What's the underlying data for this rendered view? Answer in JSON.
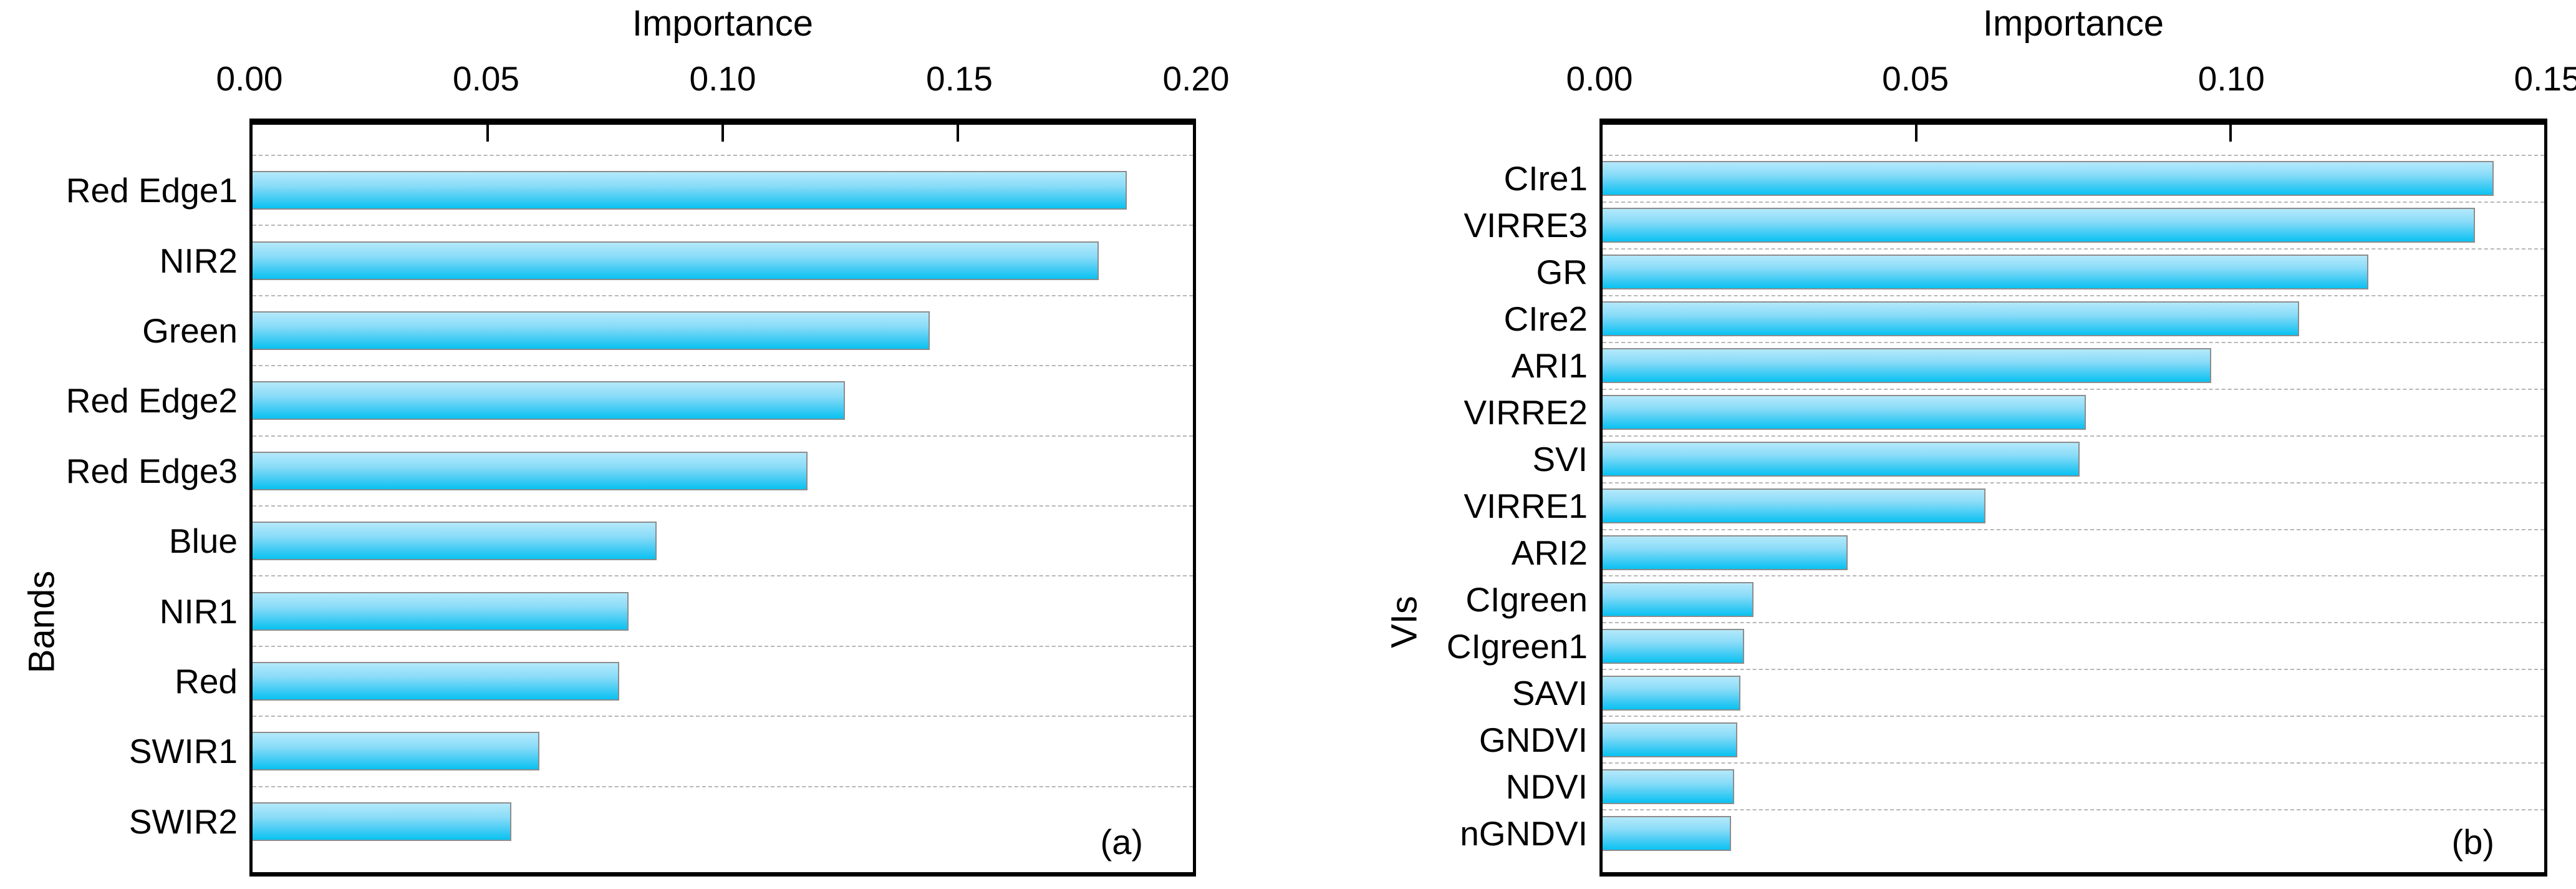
{
  "colors": {
    "bar_gradient_top": "#b4e9fb",
    "bar_gradient_bottom": "#09c2f2",
    "bar_border": "#8c8c8c",
    "gridline": "#b6b6b6",
    "axis": "#000000",
    "background": "#ffffff"
  },
  "chart_data": [
    {
      "type": "bar",
      "orientation": "horizontal",
      "panel_label": "(a)",
      "xlabel": "Importance",
      "ylabel": "Bands",
      "x_axis_position": "top",
      "grid": "dashed horizontal row separators",
      "legend": "none",
      "xlim": [
        0,
        0.2
      ],
      "xticks": [
        0.0,
        0.05,
        0.1,
        0.15,
        0.2
      ],
      "xtick_labels": [
        "0.00",
        "0.05",
        "0.10",
        "0.15",
        "0.20"
      ],
      "categories": [
        "Red Edge1",
        "NIR2",
        "Green",
        "Red Edge2",
        "Red Edge3",
        "Blue",
        "NIR1",
        "Red",
        "SWIR1",
        "SWIR2"
      ],
      "values": [
        0.186,
        0.18,
        0.144,
        0.126,
        0.118,
        0.086,
        0.08,
        0.078,
        0.061,
        0.055
      ]
    },
    {
      "type": "bar",
      "orientation": "horizontal",
      "panel_label": "(b)",
      "xlabel": "Importance",
      "ylabel": "VIs",
      "x_axis_position": "top",
      "grid": "dashed horizontal row separators",
      "legend": "none",
      "xlim": [
        0,
        0.15
      ],
      "xticks": [
        0.0,
        0.05,
        0.1,
        0.15
      ],
      "xtick_labels": [
        "0.00",
        "0.05",
        "0.10",
        "0.15"
      ],
      "categories": [
        "CIre1",
        "VIRRE3",
        "GR",
        "CIre2",
        "ARI1",
        "VIRRE2",
        "SVI",
        "VIRRE1",
        "ARI2",
        "CIgreen",
        "CIgreen1",
        "SAVI",
        "GNDVI",
        "NDVI",
        "nGNDVI"
      ],
      "values": [
        0.142,
        0.139,
        0.122,
        0.111,
        0.097,
        0.077,
        0.076,
        0.061,
        0.039,
        0.024,
        0.0225,
        0.022,
        0.0215,
        0.021,
        0.0205
      ]
    }
  ]
}
